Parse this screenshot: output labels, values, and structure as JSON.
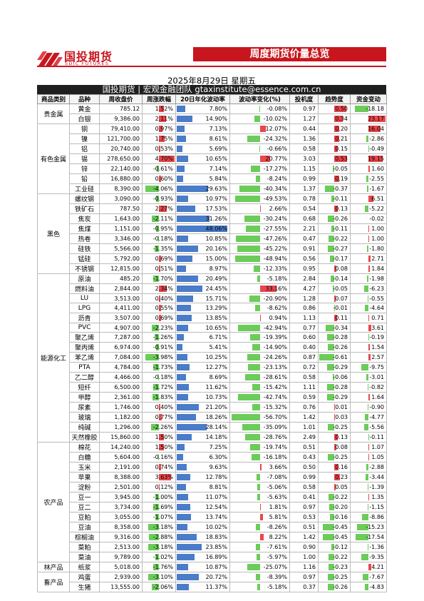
{
  "brand": {
    "cn": "国投期货",
    "en": "SDIC FUTURES"
  },
  "banner": "周度期货价量总览",
  "date": "2025年8月29日 星期五",
  "team": "国投期货 | 宏观金融团队 gtaxinstitute@essence.com.cn",
  "headers": [
    "商品类别",
    "品种",
    "周收盘价",
    "周涨跌幅",
    "20日年化波动率",
    "波动率变化(%)",
    "投机度",
    "趋势度",
    "资金变动"
  ],
  "colors": {
    "pos": "#e8474c",
    "neg": "#6ccc5a",
    "vol": "#4a7cc9"
  },
  "groups": [
    {
      "name": "贵金属",
      "rows": [
        [
          "黄金",
          "785.12",
          "1.52%",
          "7.80%",
          "-0.08%",
          "0.97",
          "0.50",
          "-18.18"
        ],
        [
          "白银",
          "9,386.00",
          "2.11%",
          "14.90%",
          "-10.02%",
          "1.27",
          "0.34",
          "23.17"
        ]
      ]
    },
    {
      "name": "有色金属",
      "rows": [
        [
          "铜",
          "79,410.00",
          "0.97%",
          "7.13%",
          "12.07%",
          "0.44",
          "0.20",
          "16.04"
        ],
        [
          "镍",
          "121,700.00",
          "1.75%",
          "8.61%",
          "-24.32%",
          "1.36",
          "0.21",
          "-2.86"
        ],
        [
          "铝",
          "20,740.00",
          "0.53%",
          "5.69%",
          "-0.66%",
          "0.58",
          "0.15",
          "-0.49"
        ],
        [
          "锡",
          "278,650.00",
          "4.70%",
          "10.65%",
          "20.77%",
          "3.03",
          "0.53",
          "19.15"
        ],
        [
          "锌",
          "22,140.00",
          "-0.61%",
          "7.14%",
          "-17.27%",
          "1.15",
          "-0.05",
          "1.60"
        ],
        [
          "铅",
          "16,880.00",
          "0.60%",
          "5.84%",
          "-8.24%",
          "0.99",
          "0.19",
          "-2.55"
        ],
        [
          "工业硅",
          "8,390.00",
          "-4.06%",
          "29.63%",
          "-40.34%",
          "1.37",
          "-0.37",
          "-1.67"
        ]
      ]
    },
    {
      "name": "黑色",
      "rows": [
        [
          "螺纹钢",
          "3,090.00",
          "-0.93%",
          "10.97%",
          "-49.53%",
          "0.78",
          "-0.11",
          "6.51"
        ],
        [
          "铁矿石",
          "787.50",
          "2.27%",
          "17.53%",
          "2.66%",
          "0.54",
          "0.13",
          "-5.22"
        ],
        [
          "焦炭",
          "1,643.00",
          "-2.11%",
          "31.26%",
          "-30.24%",
          "0.68",
          "-0.26",
          "-0.02"
        ],
        [
          "焦煤",
          "1,151.00",
          "-0.95%",
          "48.06%",
          "-27.55%",
          "2.21",
          "-0.11",
          "1.00"
        ],
        [
          "热卷",
          "3,346.00",
          "-0.18%",
          "10.85%",
          "-47.26%",
          "0.47",
          "-0.22",
          "1.00"
        ],
        [
          "硅铁",
          "5,566.00",
          "-1.35%",
          "20.16%",
          "-45.22%",
          "0.91",
          "-0.27",
          "-1.80"
        ],
        [
          "锰硅",
          "5,792.00",
          "0.69%",
          "15.00%",
          "-48.94%",
          "0.56",
          "-0.17",
          "2.71"
        ],
        [
          "不锈钢",
          "12,815.00",
          "0.51%",
          "8.97%",
          "-12.33%",
          "0.95",
          "0.08",
          "1.84"
        ]
      ]
    },
    {
      "name": "能源化工",
      "rows": [
        [
          "原油",
          "485.20",
          "-1.70%",
          "20.49%",
          "-5.18%",
          "2.84",
          "-0.14",
          "-1.98"
        ],
        [
          "燃料油",
          "2,844.00",
          "2.34%",
          "24.45%",
          "33.16%",
          "4.27",
          "-0.05",
          "-6.23"
        ],
        [
          "LU",
          "3,513.00",
          "0.40%",
          "15.71%",
          "-20.90%",
          "1.28",
          "0.07",
          "-0.55"
        ],
        [
          "LPG",
          "4,411.00",
          "0.55%",
          "13.29%",
          "-8.62%",
          "0.86",
          "-0.01",
          "-4.64"
        ],
        [
          "沥青",
          "3,507.00",
          "0.69%",
          "13.85%",
          "0.94%",
          "1.13",
          "0.11",
          "0.71"
        ],
        [
          "PVC",
          "4,907.00",
          "-2.23%",
          "10.65%",
          "-42.94%",
          "0.77",
          "-0.34",
          "3.61"
        ],
        [
          "聚乙烯",
          "7,287.00",
          "-1.26%",
          "6.71%",
          "-19.39%",
          "0.60",
          "-0.28",
          "-0.19"
        ],
        [
          "聚丙烯",
          "6,974.00",
          "-0.91%",
          "5.41%",
          "-14.90%",
          "0.40",
          "-0.26",
          "1.54"
        ],
        [
          "苯乙烯",
          "7,084.00",
          "-3.98%",
          "10.25%",
          "-24.26%",
          "0.87",
          "-0.61",
          "2.57"
        ],
        [
          "PTA",
          "4,784.00",
          "-1.73%",
          "12.27%",
          "-23.13%",
          "0.72",
          "-0.29",
          "-9.75"
        ],
        [
          "乙二醇",
          "4,466.00",
          "-0.18%",
          "8.69%",
          "-28.61%",
          "0.58",
          "-0.06",
          "-3.01"
        ],
        [
          "短纤",
          "6,500.00",
          "-1.72%",
          "11.62%",
          "-15.42%",
          "1.11",
          "-0.28",
          "-0.82"
        ],
        [
          "甲醇",
          "2,361.00",
          "-1.83%",
          "10.73%",
          "-42.74%",
          "0.59",
          "-0.29",
          "1.64"
        ],
        [
          "尿素",
          "1,746.00",
          "0.40%",
          "21.20%",
          "-15.32%",
          "0.76",
          "0.01",
          "-0.90"
        ],
        [
          "玻璃",
          "1,182.00",
          "0.77%",
          "18.26%",
          "-56.70%",
          "1.42",
          "0.03",
          "-4.77"
        ],
        [
          "纯碱",
          "1,296.00",
          "-2.26%",
          "28.14%",
          "-35.09%",
          "1.01",
          "-0.25",
          "-5.56"
        ],
        [
          "天然橡胶",
          "15,860.00",
          "1.50%",
          "14.18%",
          "-28.76%",
          "2.49",
          "0.13",
          "-0.11"
        ]
      ]
    },
    {
      "name": "农产品",
      "rows": [
        [
          "棉花",
          "14,240.00",
          "1.50%",
          "7.25%",
          "-19.74%",
          "0.51",
          "0.08",
          "1.07"
        ],
        [
          "白糖",
          "5,604.00",
          "-0.16%",
          "6.30%",
          "-16.18%",
          "0.43",
          "-0.25",
          "1.05"
        ],
        [
          "玉米",
          "2,191.00",
          "0.74%",
          "9.63%",
          "3.66%",
          "0.50",
          "0.16",
          "-2.88"
        ],
        [
          "苹果",
          "8,388.00",
          "3.63%",
          "12.78%",
          "-7.08%",
          "0.99",
          "0.23",
          "-3.44"
        ],
        [
          "淀粉",
          "2,501.00",
          "0.12%",
          "8.81%",
          "-5.06%",
          "0.58",
          "0.05",
          "-1.39"
        ],
        [
          "豆一",
          "3,945.00",
          "-1.00%",
          "11.07%",
          "-5.63%",
          "0.41",
          "-0.22",
          "1.35"
        ],
        [
          "豆二",
          "3,734.00",
          "-1.69%",
          "12.54%",
          "1.81%",
          "0.97",
          "-0.20",
          "-1.15"
        ],
        [
          "豆粕",
          "3,055.00",
          "-1.07%",
          "13.74%",
          "5.81%",
          "0.53",
          "-0.16",
          "-8.86"
        ],
        [
          "豆油",
          "8,358.00",
          "-3.18%",
          "10.02%",
          "-8.26%",
          "0.51",
          "-0.45",
          "-15.23"
        ],
        [
          "棕榈油",
          "9,316.00",
          "-2.88%",
          "18.83%",
          "8.22%",
          "1.42",
          "-0.45",
          "-17.54"
        ],
        [
          "菜粕",
          "2,513.00",
          "-3.18%",
          "23.85%",
          "-7.61%",
          "0.90",
          "-0.12",
          "-1.36"
        ],
        [
          "菜油",
          "9,789.00",
          "-1.02%",
          "16.89%",
          "-5.97%",
          "1.00",
          "-0.22",
          "-9.35"
        ]
      ]
    },
    {
      "name": "林产品",
      "rows": [
        [
          "纸浆",
          "5,018.00",
          "-1.76%",
          "10.87%",
          "-25.07%",
          "1.16",
          "-0.23",
          "4.21"
        ]
      ]
    },
    {
      "name": "畜产品",
      "rows": [
        [
          "鸡蛋",
          "2,939.00",
          "-3.10%",
          "20.72%",
          "-8.39%",
          "0.97",
          "-0.25",
          "-7.67"
        ],
        [
          "生猪",
          "13,555.00",
          "-2.06%",
          "11.37%",
          "-5.18%",
          "0.37",
          "-0.26",
          "-4.83"
        ]
      ]
    }
  ]
}
